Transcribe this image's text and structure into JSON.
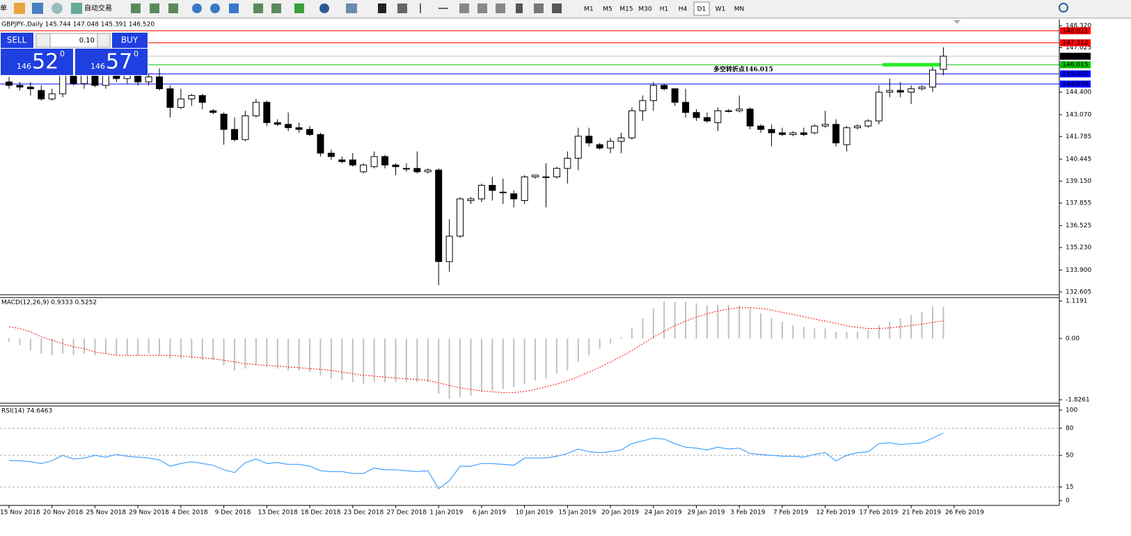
{
  "toolbar": {
    "menu": "单",
    "autotrade": "自动交易",
    "timeframes": [
      "M1",
      "M5",
      "M15",
      "M30",
      "H1",
      "H4",
      "D1",
      "W1",
      "MN"
    ],
    "selected": "D1"
  },
  "trade_panel": {
    "sell_label": "SELL",
    "buy_label": "BUY",
    "lot": "0.10",
    "sell": {
      "figure": "146",
      "pips": "52",
      "fraction": "0"
    },
    "buy": {
      "figure": "146",
      "pips": "57",
      "fraction": "0"
    }
  },
  "chart_data": [
    {
      "type": "candlestick",
      "header": "GBPJPY-,Daily  145.744 147.048 145.391 146.520",
      "up_color": "#ffffff",
      "down_color": "#000000",
      "open": [
        145.0,
        144.8,
        144.7,
        144.5,
        144.0,
        144.3,
        145.8,
        144.9,
        145.5,
        144.8,
        145.7,
        145.2,
        145.5,
        145.0,
        145.3,
        144.6,
        143.5,
        144.0,
        144.2,
        143.3,
        143.1,
        142.2,
        141.6,
        143.0,
        143.8,
        142.6,
        142.5,
        142.3,
        142.2,
        141.9,
        140.8,
        140.4,
        140.4,
        139.7,
        140.0,
        140.6,
        140.1,
        139.9,
        139.9,
        139.7,
        139.8,
        134.4,
        135.9,
        138.0,
        138.1,
        138.9,
        138.5,
        138.4,
        138.0,
        139.4,
        139.4,
        139.4,
        139.9,
        140.5,
        141.8,
        141.3,
        141.1,
        141.5,
        141.7,
        143.3,
        143.9,
        144.8,
        144.6,
        143.8,
        143.2,
        142.9,
        142.6,
        143.3,
        143.3,
        143.4,
        142.4,
        142.2,
        142.0,
        141.9,
        142.0,
        142.0,
        142.4,
        142.5,
        141.3,
        142.3,
        142.4,
        142.7,
        144.4,
        144.5,
        144.4,
        144.6,
        144.7,
        145.744
      ],
      "high": [
        145.3,
        145.0,
        145.0,
        144.8,
        144.6,
        146.0,
        146.2,
        145.6,
        145.7,
        145.9,
        146.1,
        145.8,
        145.7,
        145.5,
        145.8,
        144.8,
        144.6,
        144.3,
        144.3,
        143.4,
        143.2,
        142.9,
        143.3,
        144.0,
        143.9,
        142.8,
        143.2,
        142.6,
        142.4,
        142.0,
        141.0,
        140.6,
        140.8,
        140.2,
        140.9,
        140.7,
        140.2,
        140.2,
        140.9,
        139.9,
        139.9,
        136.9,
        138.2,
        138.2,
        139.0,
        139.4,
        139.3,
        138.6,
        139.5,
        139.5,
        140.2,
        140.0,
        140.9,
        142.3,
        142.3,
        141.4,
        141.7,
        142.0,
        143.5,
        144.2,
        145.0,
        144.9,
        144.6,
        144.6,
        143.4,
        143.2,
        143.5,
        143.4,
        144.2,
        143.5,
        142.5,
        142.5,
        142.3,
        142.1,
        142.3,
        142.5,
        143.3,
        142.8,
        142.4,
        142.5,
        142.8,
        144.8,
        145.2,
        145.0,
        144.8,
        144.8,
        145.9,
        147.048
      ],
      "low": [
        144.6,
        144.5,
        144.2,
        143.9,
        143.9,
        144.1,
        144.8,
        144.6,
        144.7,
        144.6,
        145.0,
        144.9,
        144.8,
        144.8,
        144.5,
        142.9,
        143.4,
        143.6,
        143.4,
        143.1,
        141.3,
        141.5,
        141.5,
        142.9,
        142.4,
        142.4,
        142.1,
        142.0,
        141.8,
        140.6,
        140.4,
        140.2,
        140.0,
        139.6,
        139.9,
        139.9,
        139.5,
        139.7,
        139.6,
        139.6,
        133.0,
        133.8,
        135.8,
        137.8,
        137.9,
        138.0,
        137.8,
        137.6,
        137.8,
        139.3,
        137.6,
        139.3,
        139.0,
        139.8,
        141.2,
        141.0,
        140.8,
        140.8,
        141.6,
        142.7,
        143.3,
        144.5,
        143.6,
        142.9,
        142.7,
        142.6,
        142.1,
        143.2,
        143.2,
        142.2,
        142.0,
        141.2,
        141.8,
        141.8,
        141.8,
        141.9,
        142.3,
        141.2,
        140.9,
        142.2,
        142.3,
        142.5,
        144.1,
        144.1,
        143.7,
        144.5,
        144.4,
        145.391
      ],
      "close": [
        144.8,
        144.7,
        144.6,
        144.0,
        144.3,
        145.8,
        144.9,
        145.5,
        144.8,
        145.7,
        145.2,
        145.5,
        145.0,
        145.3,
        144.6,
        143.5,
        144.0,
        144.2,
        143.8,
        143.2,
        142.2,
        141.6,
        143.0,
        143.8,
        142.6,
        142.5,
        142.3,
        142.2,
        141.9,
        140.8,
        140.6,
        140.3,
        140.1,
        140.1,
        140.6,
        140.1,
        140.0,
        139.9,
        139.7,
        139.8,
        134.4,
        135.9,
        138.1,
        138.1,
        138.9,
        138.6,
        138.5,
        138.1,
        139.4,
        139.5,
        139.4,
        139.9,
        140.5,
        141.8,
        141.4,
        141.1,
        141.5,
        141.7,
        143.3,
        143.9,
        144.8,
        144.6,
        143.8,
        143.2,
        142.9,
        142.7,
        143.3,
        143.3,
        143.4,
        142.4,
        142.2,
        142.0,
        141.9,
        142.0,
        141.9,
        142.4,
        142.5,
        141.4,
        142.3,
        142.4,
        142.7,
        144.4,
        144.5,
        144.4,
        144.6,
        144.7,
        145.7,
        146.52
      ],
      "ylim": [
        132.605,
        148.32
      ],
      "yticks": [
        {
          "value": 148.32,
          "label": "148.320"
        },
        {
          "value": 147.025,
          "label": "147.025"
        },
        {
          "value": 144.4,
          "label": "144.400"
        },
        {
          "value": 143.07,
          "label": "143.070"
        },
        {
          "value": 141.785,
          "label": "141.785"
        },
        {
          "value": 140.445,
          "label": "140.445"
        },
        {
          "value": 139.15,
          "label": "139.150"
        },
        {
          "value": 137.855,
          "label": "137.855"
        },
        {
          "value": 136.525,
          "label": "136.525"
        },
        {
          "value": 135.23,
          "label": "135.230"
        },
        {
          "value": 133.9,
          "label": "133.900"
        },
        {
          "value": 132.605,
          "label": "132.605"
        }
      ],
      "levels": [
        {
          "value": 148.021,
          "label": "148.021",
          "color": "#ff0000"
        },
        {
          "value": 147.312,
          "label": "147.312",
          "color": "#ff0000"
        },
        {
          "value": 146.52,
          "label": "146.520",
          "color": "#000000",
          "line_color": "#c0c0c0"
        },
        {
          "value": 146.015,
          "label": "146.015",
          "color": "#00c000"
        },
        {
          "value": 145.477,
          "label": "145.477",
          "color": "#0000ff"
        },
        {
          "value": 144.879,
          "label": "144.879",
          "color": "#0000ff"
        }
      ],
      "annotation": {
        "text": "多空转折点146.015",
        "value": 146.015,
        "color": "#22ee22"
      },
      "grid": false
    },
    {
      "type": "macd",
      "header": "MACD(12,26,9) 0.9333 0.5252",
      "ylim": [
        -1.8261,
        1.1191
      ],
      "yticks": [
        1.1191,
        {
          "value": 0,
          "label": "0.00"
        },
        -1.8261
      ],
      "grid": false,
      "series": [
        {
          "type": "bar",
          "color": "#c0c0c0",
          "values": [
            -0.1,
            -0.2,
            -0.35,
            -0.45,
            -0.5,
            -0.45,
            -0.5,
            -0.45,
            -0.5,
            -0.45,
            -0.5,
            -0.5,
            -0.5,
            -0.45,
            -0.5,
            -0.6,
            -0.6,
            -0.6,
            -0.65,
            -0.65,
            -0.8,
            -0.95,
            -0.9,
            -0.8,
            -0.85,
            -0.9,
            -0.95,
            -0.95,
            -1.0,
            -1.1,
            -1.2,
            -1.25,
            -1.3,
            -1.35,
            -1.3,
            -1.3,
            -1.3,
            -1.3,
            -1.3,
            -1.3,
            -1.65,
            -1.8,
            -1.75,
            -1.7,
            -1.6,
            -1.55,
            -1.5,
            -1.45,
            -1.35,
            -1.25,
            -1.2,
            -1.05,
            -0.95,
            -0.7,
            -0.5,
            -0.3,
            -0.15,
            0.05,
            0.3,
            0.6,
            0.9,
            1.1,
            1.1,
            1.1,
            1.05,
            1.0,
            1.0,
            1.0,
            1.0,
            0.9,
            0.75,
            0.6,
            0.5,
            0.4,
            0.35,
            0.3,
            0.3,
            0.2,
            0.2,
            0.2,
            0.25,
            0.4,
            0.5,
            0.6,
            0.7,
            0.8,
            0.95,
            0.9333
          ]
        },
        {
          "type": "line",
          "color": "#ff0000",
          "values": [
            0.35,
            0.3,
            0.2,
            0.05,
            -0.05,
            -0.15,
            -0.25,
            -0.3,
            -0.4,
            -0.45,
            -0.5,
            -0.5,
            -0.5,
            -0.5,
            -0.5,
            -0.5,
            -0.52,
            -0.55,
            -0.58,
            -0.6,
            -0.65,
            -0.7,
            -0.75,
            -0.78,
            -0.8,
            -0.82,
            -0.85,
            -0.87,
            -0.9,
            -0.92,
            -0.95,
            -1.0,
            -1.05,
            -1.1,
            -1.12,
            -1.15,
            -1.18,
            -1.2,
            -1.22,
            -1.25,
            -1.32,
            -1.4,
            -1.47,
            -1.52,
            -1.56,
            -1.59,
            -1.61,
            -1.61,
            -1.58,
            -1.52,
            -1.44,
            -1.36,
            -1.26,
            -1.14,
            -1.0,
            -0.86,
            -0.7,
            -0.54,
            -0.36,
            -0.16,
            0.04,
            0.22,
            0.38,
            0.52,
            0.64,
            0.74,
            0.82,
            0.88,
            0.92,
            0.92,
            0.9,
            0.85,
            0.78,
            0.72,
            0.65,
            0.58,
            0.52,
            0.45,
            0.38,
            0.33,
            0.3,
            0.3,
            0.32,
            0.35,
            0.39,
            0.43,
            0.48,
            0.5252
          ]
        }
      ]
    },
    {
      "type": "line",
      "header": "RSI(14) 74.6463",
      "ylim": [
        0,
        100
      ],
      "yticks": [
        100,
        80,
        50,
        15,
        0
      ],
      "grid": true,
      "color": "#1e90ff",
      "values": [
        44,
        44,
        43,
        41,
        44,
        50,
        46,
        47,
        50,
        48,
        51,
        49,
        48,
        47,
        45,
        38,
        41,
        43,
        41,
        39,
        34,
        31,
        42,
        46,
        41,
        42,
        40,
        40,
        38,
        33,
        32,
        32,
        30,
        30,
        36,
        34,
        34,
        33,
        32,
        33,
        13,
        22,
        38,
        38,
        41,
        41,
        40,
        39,
        47,
        47,
        47,
        49,
        52,
        57,
        54,
        53,
        54,
        56,
        63,
        66,
        69,
        68,
        63,
        59,
        58,
        56,
        59,
        57,
        58,
        52,
        51,
        50,
        49,
        49,
        48,
        51,
        53,
        44,
        50,
        53,
        54,
        63,
        64,
        62,
        63,
        64,
        69,
        74.6463
      ],
      "xticks": [
        {
          "value": 0,
          "label": "15 Nov 2018"
        },
        {
          "value": 4,
          "label": "20 Nov 2018"
        },
        {
          "value": 8,
          "label": "25 Nov 2018"
        },
        {
          "value": 12,
          "label": "29 Nov 2018"
        },
        {
          "value": 16,
          "label": "4 Dec 2018"
        },
        {
          "value": 20,
          "label": "9 Dec 2018"
        },
        {
          "value": 24,
          "label": "13 Dec 2018"
        },
        {
          "value": 28,
          "label": "18 Dec 2018"
        },
        {
          "value": 32,
          "label": "23 Dec 2018"
        },
        {
          "value": 36,
          "label": "27 Dec 2018"
        },
        {
          "value": 40,
          "label": "1 Jan 2019"
        },
        {
          "value": 44,
          "label": "6 Jan 2019"
        },
        {
          "value": 48,
          "label": "10 Jan 2019"
        },
        {
          "value": 52,
          "label": "15 Jan 2019"
        },
        {
          "value": 56,
          "label": "20 Jan 2019"
        },
        {
          "value": 60,
          "label": "24 Jan 2019"
        },
        {
          "value": 64,
          "label": "29 Jan 2019"
        },
        {
          "value": 68,
          "label": "3 Feb 2019"
        },
        {
          "value": 72,
          "label": "7 Feb 2019"
        },
        {
          "value": 76,
          "label": "12 Feb 2019"
        },
        {
          "value": 80,
          "label": "17 Feb 2019"
        },
        {
          "value": 84,
          "label": "21 Feb 2019"
        },
        {
          "value": 88,
          "label": "26 Feb 2019"
        }
      ]
    }
  ]
}
